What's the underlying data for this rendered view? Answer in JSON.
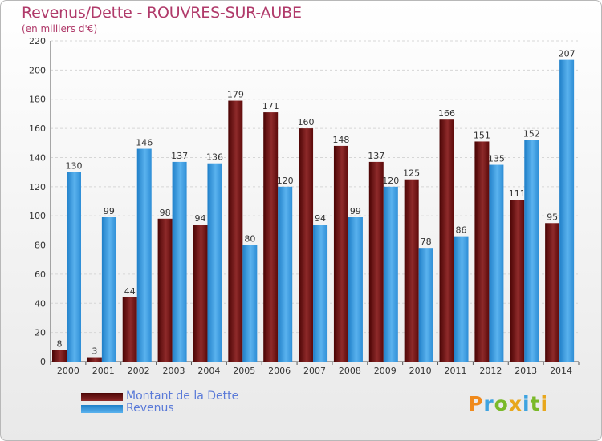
{
  "title": "Revenus/Dette - ROUVRES-SUR-AUBE",
  "subtitle": "(en milliers d'€)",
  "colors": {
    "debt": "#7a1010",
    "revenue": "#3b9be0",
    "title": "#b03a6a",
    "legend_text": "#5a7ad8"
  },
  "chart_data": {
    "type": "bar",
    "title": "Revenus/Dette - ROUVRES-SUR-AUBE",
    "ylabel": "(en milliers d'€)",
    "categories": [
      "2000",
      "2001",
      "2002",
      "2003",
      "2004",
      "2005",
      "2006",
      "2007",
      "2008",
      "2009",
      "2010",
      "2011",
      "2012",
      "2013",
      "2014"
    ],
    "series": [
      {
        "name": "Montant de la Dette",
        "values": [
          8,
          3,
          44,
          98,
          94,
          179,
          171,
          160,
          148,
          137,
          125,
          166,
          151,
          111,
          95
        ]
      },
      {
        "name": "Revenus",
        "values": [
          130,
          99,
          146,
          137,
          136,
          80,
          120,
          94,
          99,
          120,
          78,
          86,
          135,
          152,
          207
        ]
      }
    ],
    "ylim": [
      0,
      220
    ],
    "yticks": [
      0,
      20,
      40,
      60,
      80,
      100,
      120,
      140,
      160,
      180,
      200,
      220
    ],
    "grid": true,
    "legend_position": "bottom-left"
  },
  "legend": [
    {
      "label": "Montant de la Dette",
      "color": "#7a1010"
    },
    {
      "label": "Revenus",
      "color": "#3b9be0"
    }
  ],
  "logo": {
    "letters": [
      "P",
      "r",
      "o",
      "x",
      "i",
      "t",
      "i"
    ],
    "colors": [
      "#f08a1c",
      "#3ea3e0",
      "#7ab929",
      "#e8a71c",
      "#3ea3e0",
      "#7ab929",
      "#e8a71c"
    ]
  }
}
